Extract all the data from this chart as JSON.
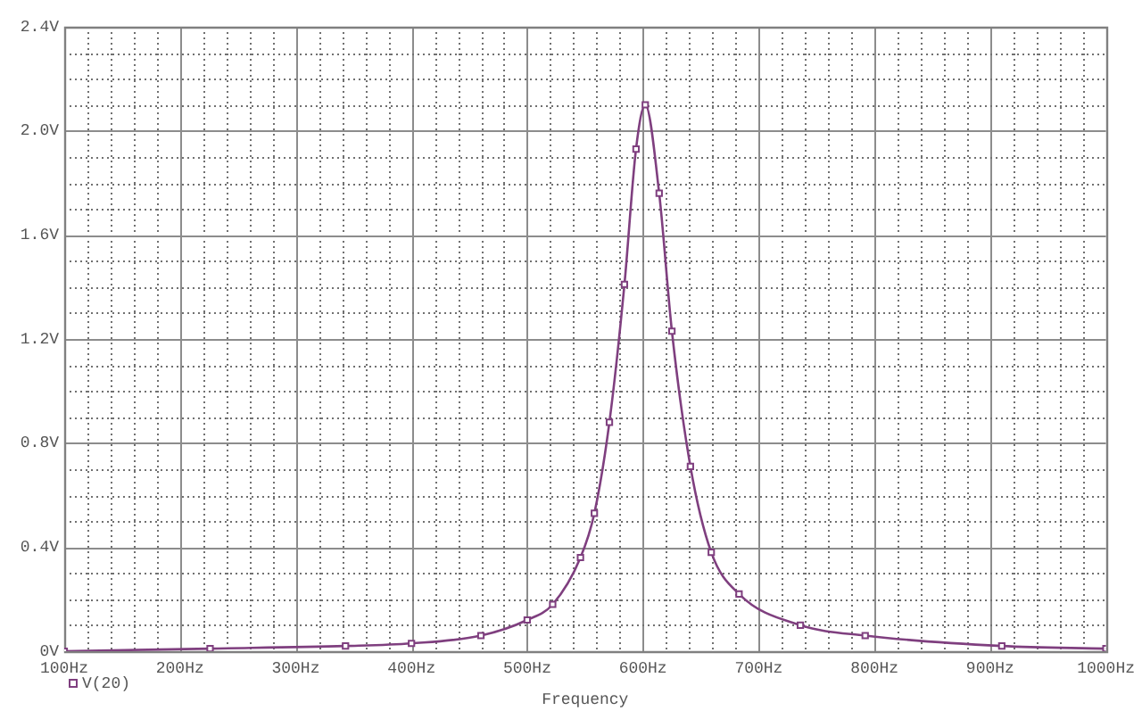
{
  "chart_data": {
    "type": "line",
    "xlabel": "Frequency",
    "x": [
      100,
      226,
      343,
      400,
      460,
      500,
      522,
      546,
      558,
      571,
      584,
      594,
      602,
      614,
      625,
      641,
      659,
      683,
      736,
      792,
      910,
      1000
    ],
    "series": [
      {
        "name": "V(20)",
        "color": "#7f3f7f",
        "values": [
          0.0,
          0.01,
          0.02,
          0.03,
          0.06,
          0.12,
          0.18,
          0.36,
          0.53,
          0.88,
          1.41,
          1.93,
          2.1,
          1.76,
          1.23,
          0.71,
          0.38,
          0.22,
          0.1,
          0.06,
          0.02,
          0.01
        ]
      }
    ],
    "xlim": [
      100,
      1000
    ],
    "ylim": [
      0,
      2.4
    ],
    "xticks": [
      {
        "value": 100,
        "label": "100Hz"
      },
      {
        "value": 120,
        "label": null
      },
      {
        "value": 140,
        "label": null
      },
      {
        "value": 160,
        "label": null
      },
      {
        "value": 180,
        "label": null
      },
      {
        "value": 200,
        "label": "200Hz"
      },
      {
        "value": 220,
        "label": null
      },
      {
        "value": 240,
        "label": null
      },
      {
        "value": 260,
        "label": null
      },
      {
        "value": 280,
        "label": null
      },
      {
        "value": 300,
        "label": "300Hz"
      },
      {
        "value": 320,
        "label": null
      },
      {
        "value": 340,
        "label": null
      },
      {
        "value": 360,
        "label": null
      },
      {
        "value": 380,
        "label": null
      },
      {
        "value": 400,
        "label": "400Hz"
      },
      {
        "value": 420,
        "label": null
      },
      {
        "value": 440,
        "label": null
      },
      {
        "value": 460,
        "label": null
      },
      {
        "value": 480,
        "label": null
      },
      {
        "value": 500,
        "label": "500Hz"
      },
      {
        "value": 520,
        "label": null
      },
      {
        "value": 540,
        "label": null
      },
      {
        "value": 560,
        "label": null
      },
      {
        "value": 580,
        "label": null
      },
      {
        "value": 600,
        "label": "600Hz"
      },
      {
        "value": 620,
        "label": null
      },
      {
        "value": 640,
        "label": null
      },
      {
        "value": 660,
        "label": null
      },
      {
        "value": 680,
        "label": null
      },
      {
        "value": 700,
        "label": "700Hz"
      },
      {
        "value": 720,
        "label": null
      },
      {
        "value": 740,
        "label": null
      },
      {
        "value": 760,
        "label": null
      },
      {
        "value": 780,
        "label": null
      },
      {
        "value": 800,
        "label": "800Hz"
      },
      {
        "value": 820,
        "label": null
      },
      {
        "value": 840,
        "label": null
      },
      {
        "value": 860,
        "label": null
      },
      {
        "value": 880,
        "label": null
      },
      {
        "value": 900,
        "label": "900Hz"
      },
      {
        "value": 920,
        "label": null
      },
      {
        "value": 940,
        "label": null
      },
      {
        "value": 960,
        "label": null
      },
      {
        "value": 980,
        "label": null
      },
      {
        "value": 1000,
        "label": "1000Hz"
      }
    ],
    "yticks": [
      {
        "value": 0,
        "label": "0V"
      },
      {
        "value": 0.1,
        "label": null
      },
      {
        "value": 0.2,
        "label": null
      },
      {
        "value": 0.3,
        "label": null
      },
      {
        "value": 0.4,
        "label": "0.4V"
      },
      {
        "value": 0.5,
        "label": null
      },
      {
        "value": 0.6,
        "label": null
      },
      {
        "value": 0.7,
        "label": null
      },
      {
        "value": 0.8,
        "label": "0.8V"
      },
      {
        "value": 0.9,
        "label": null
      },
      {
        "value": 1.0,
        "label": null
      },
      {
        "value": 1.1,
        "label": null
      },
      {
        "value": 1.2,
        "label": "1.2V"
      },
      {
        "value": 1.3,
        "label": null
      },
      {
        "value": 1.4,
        "label": null
      },
      {
        "value": 1.5,
        "label": null
      },
      {
        "value": 1.6,
        "label": "1.6V"
      },
      {
        "value": 1.7,
        "label": null
      },
      {
        "value": 1.8,
        "label": null
      },
      {
        "value": 1.9,
        "label": null
      },
      {
        "value": 2.0,
        "label": "2.0V"
      },
      {
        "value": 2.1,
        "label": null
      },
      {
        "value": 2.2,
        "label": null
      },
      {
        "value": 2.3,
        "label": null
      },
      {
        "value": 2.4,
        "label": "2.4V"
      }
    ],
    "grid": true,
    "legend": "bottom left",
    "marker": "square",
    "line_style": "solid"
  }
}
